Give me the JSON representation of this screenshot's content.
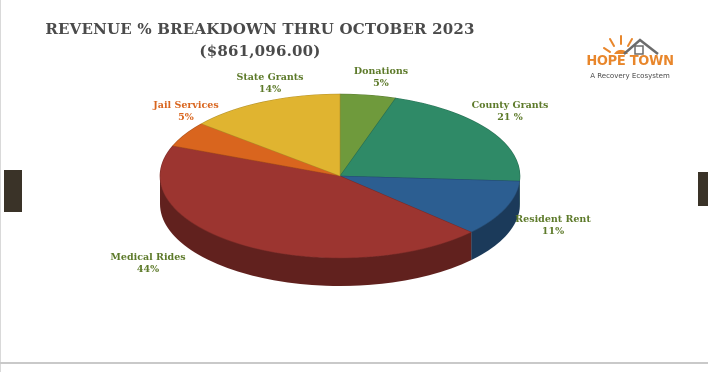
{
  "header": {
    "title": "REVENUE % BREAKDOWN THRU OCTOBER 2023",
    "subtitle": "($861,096.00)"
  },
  "logo": {
    "name": "HOPE TOWN",
    "tagline": "A Recovery Ecosystem"
  },
  "chart_data": {
    "type": "pie",
    "title": "REVENUE % BREAKDOWN THRU OCTOBER 2023",
    "subtitle": "($861,096.00)",
    "slices": [
      {
        "label": "Donations",
        "value": 5,
        "display": "5%",
        "color": "#6f9a3c"
      },
      {
        "label": "County Grants",
        "value": 21,
        "display": "21 %",
        "color": "#2f8a67"
      },
      {
        "label": "Resident Rent",
        "value": 11,
        "display": "11%",
        "color": "#2c5e91"
      },
      {
        "label": "Medical Rides",
        "value": 44,
        "display": "44%",
        "color": "#9c3530"
      },
      {
        "label": "Jail Services",
        "value": 5,
        "display": "5%",
        "color": "#d9651e"
      },
      {
        "label": "State Grants",
        "value": 14,
        "display": "14%",
        "color": "#e0b430"
      }
    ],
    "label_color": "#5d7a2a",
    "jail_label_color": "#d9651e"
  }
}
